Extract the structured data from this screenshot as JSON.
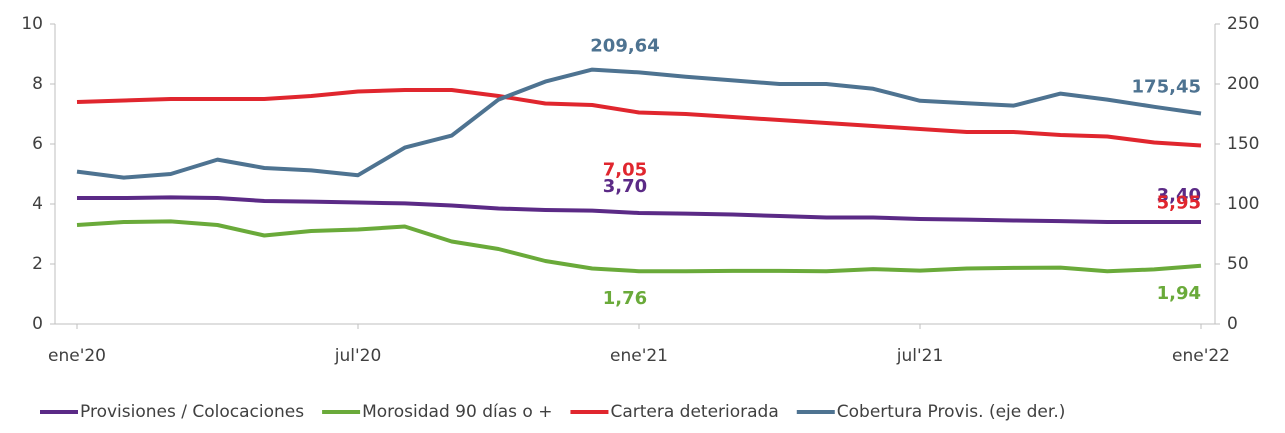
{
  "chart_data": {
    "type": "line",
    "categories": [
      "ene'20",
      null,
      null,
      null,
      null,
      null,
      "jul'20",
      null,
      null,
      null,
      null,
      null,
      "ene'21",
      null,
      null,
      null,
      null,
      null,
      "jul'21",
      null,
      null,
      null,
      null,
      null,
      "ene'22"
    ],
    "series": [
      {
        "name": "Provisiones / Colocaciones",
        "color": "#5b2a86",
        "label_pos": "above",
        "values": [
          4.2,
          4.2,
          4.22,
          4.2,
          4.1,
          4.08,
          4.05,
          4.02,
          3.95,
          3.85,
          3.8,
          3.78,
          3.7,
          3.68,
          3.65,
          3.6,
          3.55,
          3.55,
          3.5,
          3.48,
          3.45,
          3.43,
          3.4,
          3.4,
          3.4
        ],
        "value_labels": [
          null,
          null,
          null,
          null,
          null,
          null,
          null,
          null,
          null,
          null,
          null,
          null,
          "3,70",
          null,
          null,
          null,
          null,
          null,
          null,
          null,
          null,
          null,
          null,
          null,
          "3,40"
        ]
      },
      {
        "name": "Morosidad 90 días o +",
        "color": "#6aaa3a",
        "label_pos": "below",
        "values": [
          3.3,
          3.4,
          3.42,
          3.3,
          2.95,
          3.1,
          3.15,
          3.25,
          2.75,
          2.5,
          2.1,
          1.85,
          1.76,
          1.76,
          1.77,
          1.77,
          1.76,
          1.83,
          1.78,
          1.85,
          1.87,
          1.88,
          1.76,
          1.82,
          1.94
        ],
        "value_labels": [
          null,
          null,
          null,
          null,
          null,
          null,
          null,
          null,
          null,
          null,
          null,
          null,
          "1,76",
          null,
          null,
          null,
          null,
          null,
          null,
          null,
          null,
          null,
          null,
          null,
          "1,94"
        ]
      },
      {
        "name": "Cartera deteriorada",
        "color": "#e0262e",
        "label_pos": "below",
        "values": [
          7.4,
          7.45,
          7.5,
          7.5,
          7.5,
          7.6,
          7.75,
          7.8,
          7.8,
          7.6,
          7.35,
          7.3,
          7.05,
          7.0,
          6.9,
          6.8,
          6.7,
          6.6,
          6.5,
          6.4,
          6.4,
          6.3,
          6.25,
          6.05,
          5.95
        ],
        "value_labels": [
          null,
          null,
          null,
          null,
          null,
          null,
          null,
          null,
          null,
          null,
          null,
          null,
          "7,05",
          null,
          null,
          null,
          null,
          null,
          null,
          null,
          null,
          null,
          null,
          null,
          "5,95"
        ]
      },
      {
        "name": "Cobertura Provis. (eje der.)",
        "color": "#4e7391",
        "axis": "y2",
        "label_pos": "above",
        "values": [
          127,
          122,
          125,
          137,
          130,
          128,
          124,
          147,
          157,
          187,
          202,
          212,
          209.64,
          206,
          203,
          200,
          200,
          196,
          186,
          184,
          182,
          192,
          187,
          181,
          175.45
        ],
        "value_labels": [
          null,
          null,
          null,
          null,
          null,
          null,
          null,
          null,
          null,
          null,
          null,
          null,
          "209,64",
          null,
          null,
          null,
          null,
          null,
          null,
          null,
          null,
          null,
          null,
          null,
          "175,45"
        ]
      }
    ],
    "ylim": [
      0,
      10
    ],
    "yticks": [
      0,
      2,
      4,
      6,
      8,
      10
    ],
    "y2lim": [
      0,
      250
    ],
    "y2ticks": [
      0,
      50,
      100,
      150,
      200,
      250
    ],
    "legend": "bottom"
  }
}
